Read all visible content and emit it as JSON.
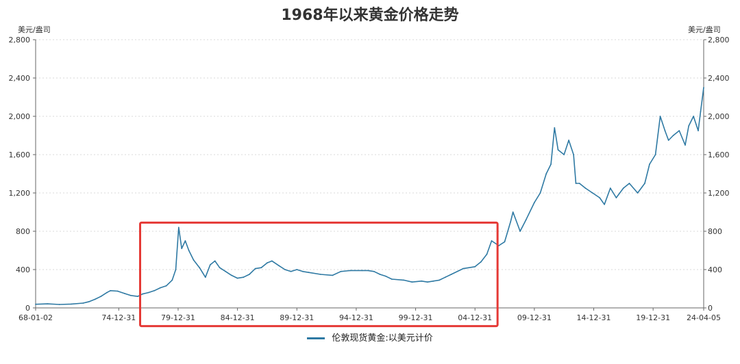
{
  "chart_data": {
    "type": "line",
    "title": "1968年以来黄金价格走势",
    "y_unit_left": "美元/盎司",
    "y_unit_right": "美元/盎司",
    "ylim": [
      0,
      2800
    ],
    "y_ticks": [
      "0",
      "400",
      "800",
      "1,200",
      "1,600",
      "2,000",
      "2,400",
      "2,800"
    ],
    "x_tick_labels": [
      "68-01-02",
      "74-12-31",
      "79-12-31",
      "84-12-31",
      "89-12-31",
      "94-12-31",
      "99-12-31",
      "04-12-31",
      "09-12-31",
      "14-12-31",
      "19-12-31",
      "24-04-05"
    ],
    "x_tick_years": [
      1968.0,
      1975.0,
      1980.0,
      1985.0,
      1990.0,
      1995.0,
      2000.0,
      2005.0,
      2010.0,
      2015.0,
      2020.0,
      2024.26
    ],
    "xlim": [
      1968.0,
      2024.26
    ],
    "series": [
      {
        "name": "伦敦现货黄金:以美元计价",
        "color": "#2e79a3",
        "x": [
          1968.0,
          1969.0,
          1970.0,
          1971.0,
          1972.0,
          1972.5,
          1973.0,
          1973.5,
          1974.0,
          1974.3,
          1974.9,
          1975.5,
          1976.0,
          1976.6,
          1977.0,
          1977.5,
          1978.0,
          1978.5,
          1979.0,
          1979.5,
          1979.8,
          1980.05,
          1980.3,
          1980.6,
          1980.9,
          1981.3,
          1981.8,
          1982.3,
          1982.7,
          1983.1,
          1983.5,
          1984.0,
          1984.5,
          1985.0,
          1985.5,
          1986.0,
          1986.5,
          1987.0,
          1987.5,
          1987.9,
          1988.5,
          1989.0,
          1989.5,
          1990.0,
          1990.5,
          1991.0,
          1992.0,
          1993.0,
          1993.7,
          1994.5,
          1995.5,
          1996.0,
          1996.5,
          1997.0,
          1997.5,
          1998.0,
          1999.0,
          1999.7,
          2000.5,
          2001.0,
          2001.5,
          2002.0,
          2002.5,
          2003.0,
          2004.0,
          2005.0,
          2005.5,
          2006.0,
          2006.4,
          2007.0,
          2007.5,
          2008.0,
          2008.2,
          2008.8,
          2009.3,
          2010.0,
          2010.5,
          2011.0,
          2011.4,
          2011.7,
          2012.0,
          2012.5,
          2012.9,
          2013.3,
          2013.5,
          2013.8,
          2014.3,
          2014.9,
          2015.5,
          2015.9,
          2016.4,
          2016.9,
          2017.5,
          2018.0,
          2018.7,
          2019.3,
          2019.7,
          2020.2,
          2020.6,
          2021.0,
          2021.3,
          2021.7,
          2022.2,
          2022.7,
          2023.0,
          2023.4,
          2023.8,
          2024.0,
          2024.26
        ],
        "values": [
          38,
          42,
          36,
          40,
          50,
          65,
          90,
          120,
          160,
          180,
          175,
          150,
          130,
          120,
          145,
          160,
          180,
          210,
          230,
          290,
          400,
          840,
          620,
          700,
          600,
          500,
          420,
          320,
          450,
          490,
          420,
          380,
          340,
          310,
          320,
          350,
          410,
          420,
          470,
          490,
          440,
          400,
          380,
          400,
          380,
          370,
          350,
          340,
          380,
          390,
          390,
          390,
          380,
          350,
          330,
          300,
          290,
          270,
          280,
          270,
          280,
          290,
          320,
          350,
          410,
          430,
          480,
          560,
          700,
          650,
          690,
          900,
          1000,
          800,
          920,
          1100,
          1200,
          1400,
          1500,
          1880,
          1650,
          1600,
          1750,
          1600,
          1300,
          1300,
          1250,
          1200,
          1150,
          1080,
          1250,
          1150,
          1250,
          1300,
          1200,
          1300,
          1500,
          1600,
          2000,
          1850,
          1750,
          1800,
          1850,
          1700,
          1900,
          2000,
          1850,
          2050,
          2300
        ]
      }
    ],
    "highlight_box": {
      "x": [
        1976.8,
        2006.9
      ],
      "y": [
        -190,
        890
      ],
      "color": "#e53935"
    },
    "grid": "horizontal-dashed",
    "legend": "bottom-center"
  }
}
